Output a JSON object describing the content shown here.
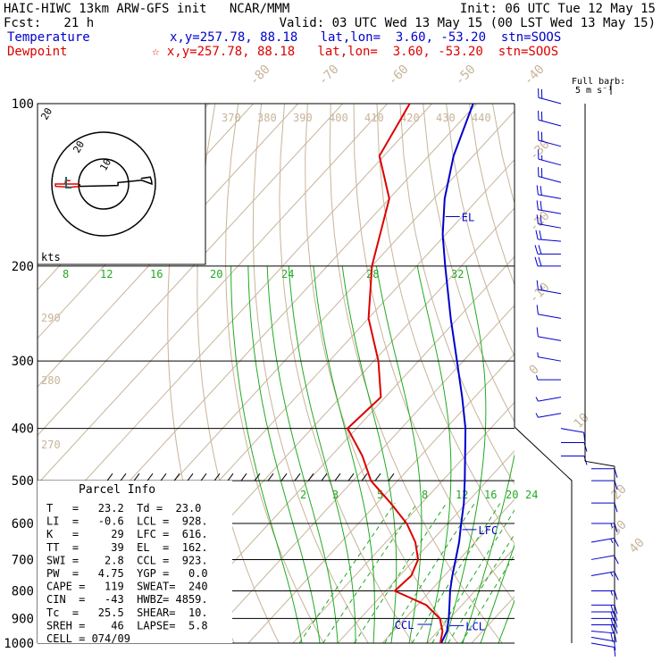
{
  "header": {
    "title": "HAIC-HIWC 13km ARW-GFS init   NCAR/MMM",
    "init": "Init: 06 UTC Tue 12 May 15",
    "fcst": "Fcst:   21 h",
    "valid": "Valid: 03 UTC Wed 13 May 15 (00 LST Wed 13 May 15)",
    "temp_label": "Temperature",
    "temp_loc": "x,y=257.78, 88.18   lat,lon=  3.60, -53.20  stn=SOOS",
    "dew_label": "Dewpoint",
    "dew_loc": "☆ x,y=257.78, 88.18   lat,lon=  3.60, -53.20  stn=SOOS"
  },
  "barb_legend": {
    "line1": "Full barb:",
    "line2": "5 m s⁻¹"
  },
  "hodograph": {
    "ring_labels": [
      "20",
      "10"
    ],
    "units": "kts"
  },
  "parcel_info": {
    "title": "Parcel Info",
    "rows": [
      "T   =   23.2  Td =  23.0",
      "LI  =   -0.6  LCL =  928.",
      "K   =     29  LFC =  616.",
      "TT  =     39  EL  =  162.",
      "SWI =    2.8  CCL =  923.",
      "PW  =   4.75  YGP =   0.0",
      "CAPE =   119  SWEAT=  240",
      "CIN  =   -43  HWBZ= 4859.",
      "Tc  =   25.5  SHEAR=  10.",
      "SREH =    46  LAPSE=  5.8",
      "CELL = 074/09"
    ]
  },
  "chart_data": {
    "type": "skew-t",
    "pressure_ticks": [
      "100",
      "200",
      "300",
      "400",
      "500",
      "600",
      "700",
      "800",
      "900",
      "1000"
    ],
    "isotherm_labels_top": [
      "-80",
      "-70",
      "-60",
      "-50",
      "-40"
    ],
    "isotherm_labels_right": [
      "-30",
      "-20",
      "-10",
      "0",
      "10",
      "20",
      "30",
      "40"
    ],
    "theta_labels": [
      "370",
      "380",
      "390",
      "400",
      "410",
      "420",
      "430",
      "440"
    ],
    "theta_labels_left": [
      "290",
      "280",
      "270"
    ],
    "mixing_ratio_labels_upper": [
      "8",
      "12",
      "16",
      "20",
      "24",
      "28",
      "32"
    ],
    "mixing_ratio_labels_lower": [
      "2",
      "3",
      "5",
      "8",
      "12",
      "16",
      "20",
      "24"
    ],
    "level_markers": [
      "EL",
      "LFC",
      "LCL",
      "CCL"
    ],
    "colors": {
      "temperature": "#0000cc",
      "dewpoint": "#dd0000",
      "isotherm": "#c8b49a",
      "moist_adiabat": "#22aa22"
    },
    "temperature_profile": [
      {
        "p": 1000,
        "t": 23.2
      },
      {
        "p": 950,
        "t": 22.0
      },
      {
        "p": 900,
        "t": 19.8
      },
      {
        "p": 850,
        "t": 17.2
      },
      {
        "p": 800,
        "t": 14.4
      },
      {
        "p": 750,
        "t": 11.8
      },
      {
        "p": 700,
        "t": 9.2
      },
      {
        "p": 650,
        "t": 6.4
      },
      {
        "p": 600,
        "t": 3.0
      },
      {
        "p": 550,
        "t": -0.6
      },
      {
        "p": 500,
        "t": -5.0
      },
      {
        "p": 450,
        "t": -10.0
      },
      {
        "p": 400,
        "t": -15.6
      },
      {
        "p": 350,
        "t": -22.8
      },
      {
        "p": 300,
        "t": -31.4
      },
      {
        "p": 250,
        "t": -41.6
      },
      {
        "p": 200,
        "t": -53.6
      },
      {
        "p": 175,
        "t": -60.6
      },
      {
        "p": 150,
        "t": -67.6
      },
      {
        "p": 125,
        "t": -74.4
      },
      {
        "p": 100,
        "t": -80.8
      }
    ],
    "dewpoint_profile": [
      {
        "p": 1000,
        "t": 23.0
      },
      {
        "p": 950,
        "t": 21.0
      },
      {
        "p": 900,
        "t": 17.8
      },
      {
        "p": 850,
        "t": 12.0
      },
      {
        "p": 800,
        "t": 2.0
      },
      {
        "p": 750,
        "t": 2.6
      },
      {
        "p": 700,
        "t": 0.8
      },
      {
        "p": 650,
        "t": -3.4
      },
      {
        "p": 600,
        "t": -9.2
      },
      {
        "p": 550,
        "t": -17.0
      },
      {
        "p": 500,
        "t": -26.0
      },
      {
        "p": 450,
        "t": -33.0
      },
      {
        "p": 400,
        "t": -42.0
      },
      {
        "p": 350,
        "t": -41.0
      },
      {
        "p": 300,
        "t": -49.0
      },
      {
        "p": 250,
        "t": -60.0
      },
      {
        "p": 200,
        "t": -70.0
      },
      {
        "p": 150,
        "t": -80.0
      },
      {
        "p": 125,
        "t": -91.0
      },
      {
        "p": 100,
        "t": -95.0
      }
    ],
    "wind_barbs": [
      {
        "p": 1000,
        "dir": 100,
        "spd": 5
      },
      {
        "p": 975,
        "dir": 100,
        "spd": 7
      },
      {
        "p": 950,
        "dir": 95,
        "spd": 10
      },
      {
        "p": 925,
        "dir": 90,
        "spd": 10
      },
      {
        "p": 900,
        "dir": 90,
        "spd": 10
      },
      {
        "p": 875,
        "dir": 90,
        "spd": 10
      },
      {
        "p": 850,
        "dir": 90,
        "spd": 10
      },
      {
        "p": 800,
        "dir": 90,
        "spd": 8
      },
      {
        "p": 750,
        "dir": 80,
        "spd": 8
      },
      {
        "p": 700,
        "dir": 80,
        "spd": 7
      },
      {
        "p": 650,
        "dir": 80,
        "spd": 8
      },
      {
        "p": 600,
        "dir": 90,
        "spd": 8
      },
      {
        "p": 550,
        "dir": 90,
        "spd": 6
      },
      {
        "p": 500,
        "dir": 90,
        "spd": 5
      },
      {
        "p": 475,
        "dir": 90,
        "spd": 5
      },
      {
        "p": 450,
        "dir": 90,
        "spd": 5
      },
      {
        "p": 425,
        "dir": 90,
        "spd": 5
      },
      {
        "p": 400,
        "dir": 100,
        "spd": 5
      },
      {
        "p": 375,
        "dir": 260,
        "spd": 3
      },
      {
        "p": 350,
        "dir": 260,
        "spd": 3
      },
      {
        "p": 325,
        "dir": 270,
        "spd": 3
      },
      {
        "p": 300,
        "dir": 280,
        "spd": 3
      },
      {
        "p": 275,
        "dir": 280,
        "spd": 5
      },
      {
        "p": 250,
        "dir": 280,
        "spd": 5
      },
      {
        "p": 225,
        "dir": 280,
        "spd": 8
      },
      {
        "p": 200,
        "dir": 270,
        "spd": 10
      },
      {
        "p": 190,
        "dir": 270,
        "spd": 10
      },
      {
        "p": 180,
        "dir": 275,
        "spd": 10
      },
      {
        "p": 170,
        "dir": 280,
        "spd": 10
      },
      {
        "p": 160,
        "dir": 280,
        "spd": 10
      },
      {
        "p": 150,
        "dir": 280,
        "spd": 10
      },
      {
        "p": 140,
        "dir": 285,
        "spd": 10
      },
      {
        "p": 130,
        "dir": 285,
        "spd": 8
      },
      {
        "p": 120,
        "dir": 285,
        "spd": 10
      },
      {
        "p": 110,
        "dir": 285,
        "spd": 10
      },
      {
        "p": 100,
        "dir": 285,
        "spd": 10
      }
    ]
  }
}
